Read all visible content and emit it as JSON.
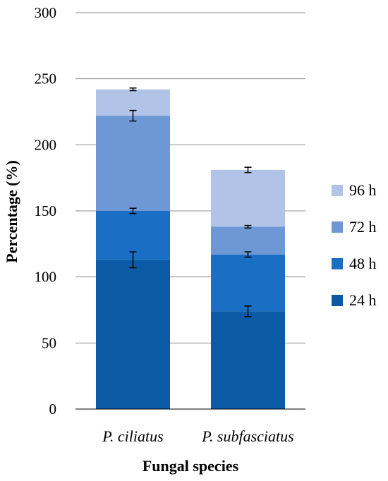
{
  "chart_data": {
    "type": "bar",
    "stacked": true,
    "categories": [
      "P. ciliatus",
      "P. subfasciatus"
    ],
    "xlabel": "Fungal species",
    "ylabel": "Percentage (%)",
    "ylim": [
      0,
      300
    ],
    "yticks": [
      0,
      50,
      100,
      150,
      200,
      250,
      300
    ],
    "grid": true,
    "legend_position": "right",
    "series": [
      {
        "name": "24 h",
        "color": "#0a5aa6",
        "values": [
          113,
          74
        ],
        "errors": [
          6,
          4
        ]
      },
      {
        "name": "48 h",
        "color": "#1a6fc4",
        "values": [
          37,
          43
        ],
        "errors": [
          2,
          2
        ]
      },
      {
        "name": "72 h",
        "color": "#6e97d6",
        "values": [
          72,
          21
        ],
        "errors": [
          4,
          1
        ]
      },
      {
        "name": "96 h",
        "color": "#b1c3e6",
        "values": [
          20,
          43
        ],
        "errors": [
          1,
          2
        ]
      }
    ]
  }
}
